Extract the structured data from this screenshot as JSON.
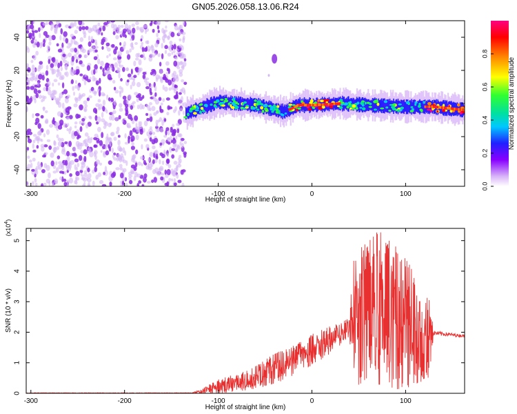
{
  "figure": {
    "title": "GN05.2026.058.13.06.R24"
  },
  "chart_data": [
    {
      "type": "heatmap",
      "title": "GN05.2026.058.13.06.R24",
      "xlabel": "Height of straight line (km)",
      "ylabel": "Frequency (Hz)",
      "xlim": [
        -305,
        163
      ],
      "ylim": [
        -50,
        50
      ],
      "xticks": [
        -300,
        -200,
        -100,
        0,
        100
      ],
      "yticks": [
        -40,
        -20,
        0,
        20,
        40
      ],
      "colorbar": {
        "label": "Normalized spectral amplitude",
        "range": [
          0,
          1
        ],
        "ticks": [
          "0.0",
          "0.2",
          "0.4",
          "0.6",
          "0.8"
        ],
        "colormap": [
          "#ffffff",
          "#d8b4f8",
          "#8800ff",
          "#2020ff",
          "#00c8ff",
          "#00e0a0",
          "#30ff30",
          "#ffff00",
          "#ff8800",
          "#ff0000",
          "#ff0080"
        ]
      },
      "regions": [
        {
          "name": "scattered noise",
          "x_range": [
            -305,
            -135
          ],
          "y_range": [
            -50,
            50
          ],
          "amplitude": "0.05-0.2"
        },
        {
          "name": "signal band",
          "x_range": [
            -135,
            163
          ],
          "center_hz": [
            [
              -135,
              -6
            ],
            [
              -100,
              1
            ],
            [
              -60,
              -1
            ],
            [
              -30,
              -5
            ],
            [
              -15,
              -1
            ],
            [
              0,
              -1
            ],
            [
              30,
              0
            ],
            [
              60,
              -1
            ],
            [
              100,
              -2
            ],
            [
              130,
              -2
            ],
            [
              163,
              -4
            ]
          ],
          "halfwidth_hz": 6
        },
        {
          "name": "isolated blob",
          "x": -40,
          "y": 27,
          "amplitude": "0.2"
        }
      ]
    },
    {
      "type": "line",
      "xlabel": "Height of straight line (km)",
      "ylabel": "SNR (10 * v/v)",
      "y_multiplier": "(x10^4)",
      "y_multiplier_base": "(x10",
      "y_multiplier_exp": "4",
      "y_multiplier_close": ")",
      "xlim": [
        -305,
        163
      ],
      "ylim": [
        0,
        5.4
      ],
      "xticks": [
        -300,
        -200,
        -100,
        0,
        100
      ],
      "yticks": [
        0,
        1,
        2,
        3,
        4,
        5
      ],
      "series": [
        {
          "color": "#e83030",
          "envelope": [
            {
              "x": -305,
              "low": 0.0,
              "high": 0.02
            },
            {
              "x": -130,
              "low": 0.0,
              "high": 0.02
            },
            {
              "x": -120,
              "low": 0.0,
              "high": 0.1
            },
            {
              "x": -100,
              "low": 0.0,
              "high": 0.45
            },
            {
              "x": -80,
              "low": 0.05,
              "high": 0.65
            },
            {
              "x": -60,
              "low": 0.15,
              "high": 0.9
            },
            {
              "x": -40,
              "low": 0.3,
              "high": 1.3
            },
            {
              "x": -20,
              "low": 0.5,
              "high": 1.55
            },
            {
              "x": 0,
              "low": 0.9,
              "high": 1.95
            },
            {
              "x": 20,
              "low": 1.3,
              "high": 2.2
            },
            {
              "x": 40,
              "low": 1.8,
              "high": 2.5
            },
            {
              "x": 45,
              "low": 0.3,
              "high": 4.5
            },
            {
              "x": 70,
              "low": 0.1,
              "high": 5.4
            },
            {
              "x": 100,
              "low": 0.15,
              "high": 4.5
            },
            {
              "x": 125,
              "low": 0.5,
              "high": 3.2
            },
            {
              "x": 130,
              "low": 1.9,
              "high": 2.05
            },
            {
              "x": 163,
              "low": 1.83,
              "high": 1.92
            }
          ]
        }
      ]
    }
  ]
}
